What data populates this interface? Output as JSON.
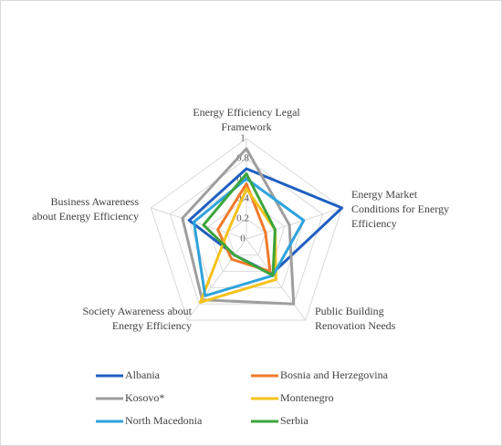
{
  "chart_data": {
    "type": "radar",
    "categories": [
      "Energy Efficiency Legal Framework",
      "Energy Market Conditions for Energy Efficiency",
      "Public Building Renovation Needs",
      "Society Awareness about Energy Efficiency",
      "Business Awareness about Energy Efficiency"
    ],
    "series": [
      {
        "name": "Albania",
        "color": "#1f5fbf",
        "values": [
          0.7,
          1.0,
          0.43,
          0.2,
          0.6
        ]
      },
      {
        "name": "Bosnia and Herzegovina",
        "color": "#f07a2a",
        "values": [
          0.55,
          0.2,
          0.4,
          0.25,
          0.3
        ]
      },
      {
        "name": "Kosovo*",
        "color": "#9e9e9e",
        "values": [
          0.9,
          0.45,
          0.8,
          0.75,
          0.67
        ]
      },
      {
        "name": "Montenegro",
        "color": "#f5c21b",
        "values": [
          0.5,
          0.3,
          0.5,
          0.78,
          0.2
        ]
      },
      {
        "name": "North Macedonia",
        "color": "#2ea3dc",
        "values": [
          0.6,
          0.6,
          0.45,
          0.7,
          0.55
        ]
      },
      {
        "name": "Serbia",
        "color": "#3aa53a",
        "values": [
          0.65,
          0.3,
          0.45,
          0.2,
          0.45
        ]
      }
    ],
    "ylim": [
      0,
      1
    ],
    "yticks": [
      0,
      0.2,
      0.4,
      0.6,
      0.8,
      1
    ],
    "grid": true
  }
}
